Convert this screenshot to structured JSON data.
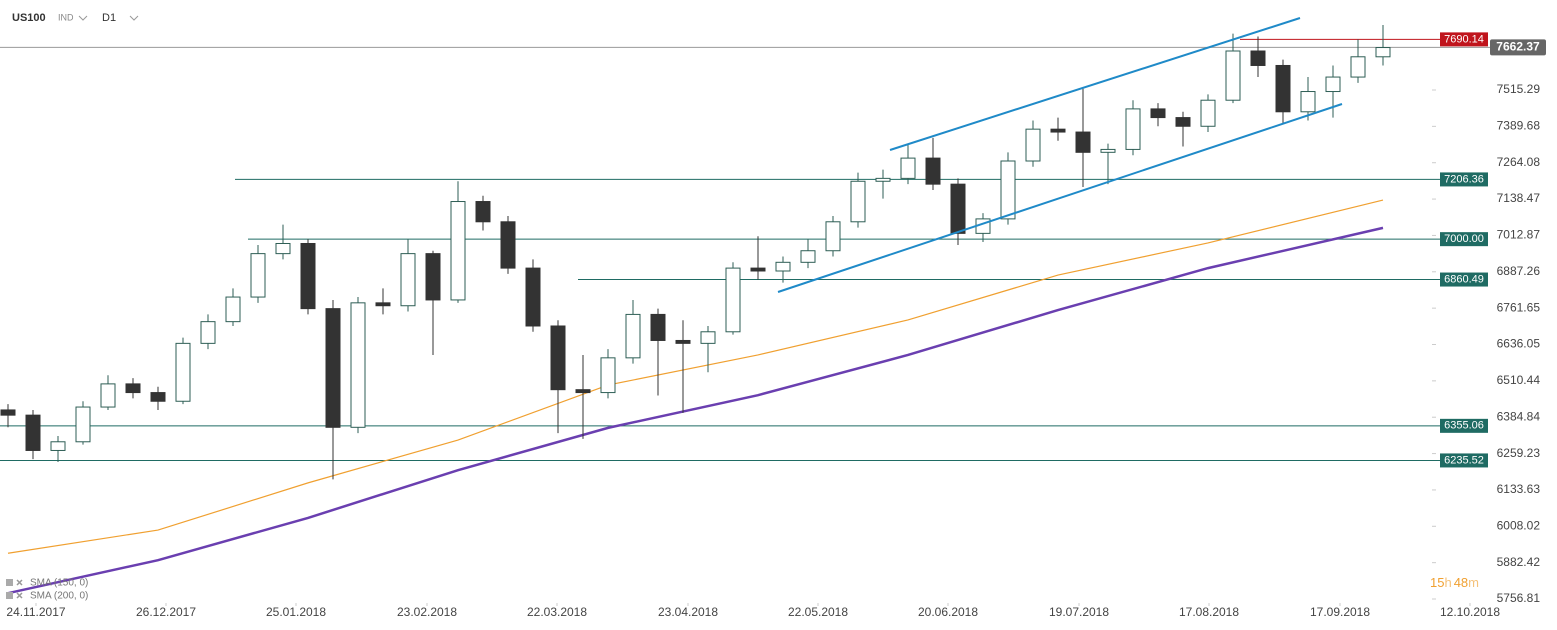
{
  "header": {
    "symbol": "US100",
    "market": "IND",
    "interval": "D1"
  },
  "timer": {
    "hours": "15",
    "h": "h",
    "minutes": "48",
    "m": "m"
  },
  "chart_data": {
    "type": "candlestick",
    "ohlc": [
      [
        6410,
        6430,
        6350,
        6392
      ],
      [
        6392,
        6410,
        6240,
        6270
      ],
      [
        6270,
        6320,
        6230,
        6300
      ],
      [
        6300,
        6440,
        6290,
        6420
      ],
      [
        6420,
        6530,
        6410,
        6500
      ],
      [
        6500,
        6520,
        6450,
        6470
      ],
      [
        6470,
        6490,
        6410,
        6440
      ],
      [
        6440,
        6660,
        6430,
        6640
      ],
      [
        6640,
        6740,
        6620,
        6715
      ],
      [
        6715,
        6830,
        6700,
        6800
      ],
      [
        6800,
        6980,
        6780,
        6950
      ],
      [
        6950,
        7050,
        6930,
        6985
      ],
      [
        6985,
        7000,
        6740,
        6760
      ],
      [
        6760,
        6790,
        6170,
        6350
      ],
      [
        6350,
        6800,
        6330,
        6780
      ],
      [
        6780,
        6830,
        6740,
        6770
      ],
      [
        6770,
        7000,
        6750,
        6950
      ],
      [
        6950,
        6960,
        6600,
        6790
      ],
      [
        6790,
        7200,
        6780,
        7130
      ],
      [
        7130,
        7150,
        7030,
        7060
      ],
      [
        7060,
        7080,
        6880,
        6900
      ],
      [
        6900,
        6930,
        6680,
        6700
      ],
      [
        6700,
        6720,
        6330,
        6480
      ],
      [
        6480,
        6600,
        6310,
        6470
      ],
      [
        6470,
        6620,
        6450,
        6590
      ],
      [
        6590,
        6790,
        6570,
        6740
      ],
      [
        6740,
        6760,
        6460,
        6650
      ],
      [
        6650,
        6720,
        6400,
        6640
      ],
      [
        6640,
        6700,
        6540,
        6680
      ],
      [
        6680,
        6920,
        6670,
        6900
      ],
      [
        6900,
        7010,
        6860,
        6890
      ],
      [
        6890,
        6940,
        6850,
        6920
      ],
      [
        6920,
        7000,
        6900,
        6960
      ],
      [
        6960,
        7080,
        6940,
        7060
      ],
      [
        7060,
        7230,
        7040,
        7200
      ],
      [
        7200,
        7240,
        7140,
        7210
      ],
      [
        7210,
        7330,
        7190,
        7280
      ],
      [
        7280,
        7350,
        7170,
        7190
      ],
      [
        7190,
        7210,
        6980,
        7020
      ],
      [
        7020,
        7090,
        6990,
        7070
      ],
      [
        7070,
        7300,
        7050,
        7270
      ],
      [
        7270,
        7410,
        7250,
        7380
      ],
      [
        7380,
        7420,
        7340,
        7370
      ],
      [
        7370,
        7520,
        7180,
        7300
      ],
      [
        7300,
        7330,
        7190,
        7310
      ],
      [
        7310,
        7480,
        7290,
        7450
      ],
      [
        7450,
        7470,
        7390,
        7420
      ],
      [
        7420,
        7440,
        7320,
        7390
      ],
      [
        7390,
        7500,
        7370,
        7480
      ],
      [
        7480,
        7710,
        7470,
        7650
      ],
      [
        7650,
        7700,
        7560,
        7600
      ],
      [
        7600,
        7620,
        7400,
        7440
      ],
      [
        7440,
        7560,
        7410,
        7510
      ],
      [
        7510,
        7600,
        7420,
        7560
      ],
      [
        7560,
        7690,
        7540,
        7630
      ],
      [
        7630,
        7740,
        7600,
        7662
      ]
    ],
    "up_color": "#ffffff",
    "down_color": "#333333",
    "border_color": "#2e5e55",
    "series": [
      {
        "name": "SMA (150, 0)",
        "color": "#f0a030",
        "x": [
          0,
          6,
          12,
          18,
          24,
          30,
          36,
          42,
          48,
          55
        ],
        "values": [
          5915,
          5995,
          6158,
          6306,
          6496,
          6600,
          6721,
          6876,
          6987,
          7135
        ]
      },
      {
        "name": "SMA (200, 0)",
        "color": "#6a3fb0",
        "x": [
          0,
          6,
          12,
          18,
          24,
          30,
          36,
          42,
          48,
          55
        ],
        "values": [
          5777,
          5891,
          6037,
          6202,
          6348,
          6461,
          6600,
          6755,
          6900,
          7039
        ]
      }
    ],
    "levels": [
      {
        "value": 7690.14,
        "label": "7690.14",
        "color": "#c0141c"
      },
      {
        "value": 7206.36,
        "label": "7206.36",
        "color": "#1f6b63"
      },
      {
        "value": 7000,
        "label": "7000.00",
        "color": "#1f6b63"
      },
      {
        "value": 6860.49,
        "label": "6860.49",
        "color": "#1f6b63"
      },
      {
        "value": 6355.06,
        "label": "6355.06",
        "color": "#1f6b63"
      },
      {
        "value": 6235.52,
        "label": "6235.52",
        "color": "#1f6b63"
      }
    ],
    "current": {
      "value": 7662.37,
      "label": "7662.37"
    },
    "ylim": [
      5753.4,
      7826.2
    ],
    "yticks": [
      {
        "value": 7515.29,
        "label": "7515.29"
      },
      {
        "value": 7389.68,
        "label": "7389.68"
      },
      {
        "value": 7264.08,
        "label": "7264.08"
      },
      {
        "value": 7138.47,
        "label": "7138.47"
      },
      {
        "value": 7012.87,
        "label": "7012.87"
      },
      {
        "value": 6887.26,
        "label": "6887.26"
      },
      {
        "value": 6761.65,
        "label": "6761.65"
      },
      {
        "value": 6636.05,
        "label": "6636.05"
      },
      {
        "value": 6510.44,
        "label": "6510.44"
      },
      {
        "value": 6384.84,
        "label": "6384.84"
      },
      {
        "value": 6259.23,
        "label": "6259.23"
      },
      {
        "value": 6133.63,
        "label": "6133.63"
      },
      {
        "value": 6008.02,
        "label": "6008.02"
      },
      {
        "value": 5882.42,
        "label": "5882.42"
      },
      {
        "value": 5756.81,
        "label": "5756.81"
      }
    ],
    "xlim": [
      -0.32,
      56.88
    ],
    "xticks": [
      {
        "value": 1.12,
        "label": "24.11.2017"
      },
      {
        "value": 6.32,
        "label": "26.12.2017"
      },
      {
        "value": 11.52,
        "label": "25.01.2018"
      },
      {
        "value": 16.76,
        "label": "23.02.2018"
      },
      {
        "value": 21.96,
        "label": "22.03.2018"
      },
      {
        "value": 27.2,
        "label": "23.04.2018"
      },
      {
        "value": 32.4,
        "label": "22.05.2018"
      },
      {
        "value": 37.6,
        "label": "20.06.2018"
      },
      {
        "value": 42.84,
        "label": "19.07.2018"
      },
      {
        "value": 48.04,
        "label": "17.08.2018"
      },
      {
        "value": 53.28,
        "label": "17.09.2018"
      },
      {
        "value": 58.48,
        "label": "12.10.2018"
      }
    ]
  }
}
